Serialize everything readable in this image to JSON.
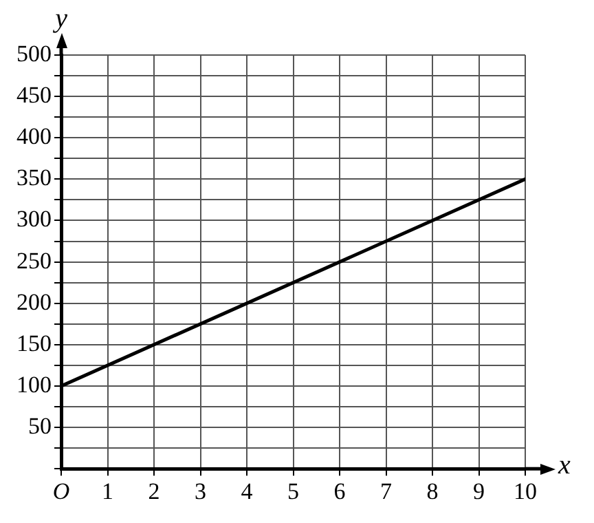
{
  "chart_data": {
    "type": "line",
    "xlabel": "x",
    "ylabel": "y",
    "series": [
      {
        "color": "#000000",
        "x": [
          0,
          10
        ],
        "values": [
          100,
          350
        ]
      }
    ],
    "xlim": [
      0,
      10
    ],
    "ylim": [
      0,
      500
    ],
    "xticks": [
      {
        "value": 0,
        "label": "O"
      },
      1,
      2,
      3,
      4,
      5,
      6,
      7,
      8,
      9,
      10
    ],
    "yticks": [
      {
        "value": 0,
        "label": null
      },
      {
        "value": 25,
        "label": null
      },
      50,
      {
        "value": 75,
        "label": null
      },
      100,
      {
        "value": 125,
        "label": null
      },
      150,
      {
        "value": 175,
        "label": null
      },
      200,
      {
        "value": 225,
        "label": null
      },
      250,
      {
        "value": 275,
        "label": null
      },
      300,
      {
        "value": 325,
        "label": null
      },
      350,
      {
        "value": 375,
        "label": null
      },
      400,
      {
        "value": 425,
        "label": null
      },
      450,
      {
        "value": 475,
        "label": null
      },
      500
    ],
    "grid": true,
    "legend": false,
    "marker": "none",
    "line_style": "solid"
  }
}
